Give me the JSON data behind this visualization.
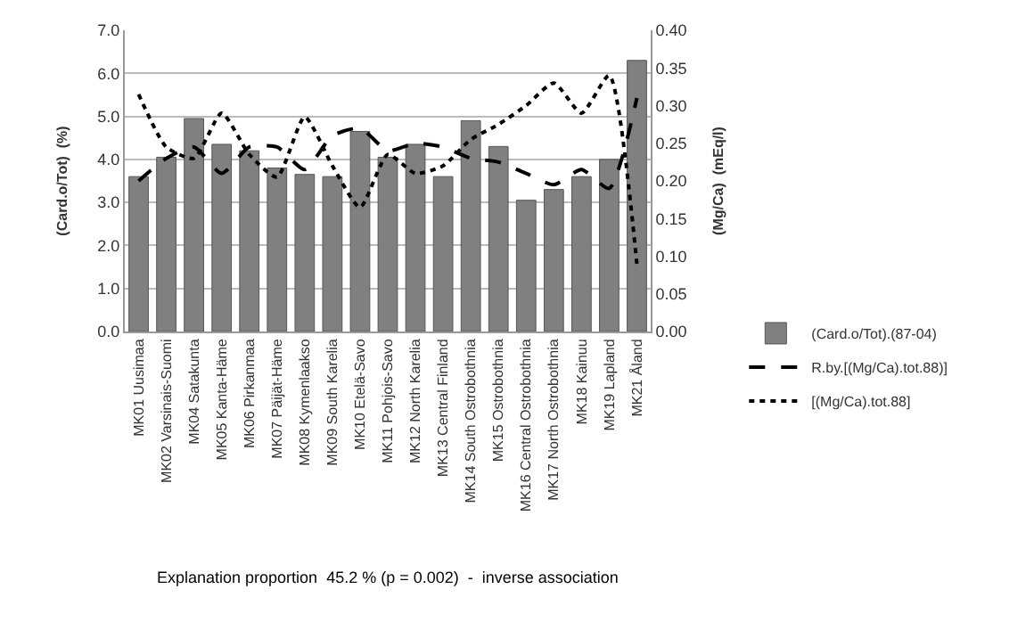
{
  "chart_data": {
    "type": "bar",
    "categories": [
      "MK01 Uusimaa",
      "MK02 Varsinais-Suomi",
      "MK04 Satakunta",
      "MK05 Kanta-Häme",
      "MK06 Pirkanmaa",
      "MK07 Päijät-Häme",
      "MK08 Kymenlaakso",
      "MK09 South Karelia",
      "MK10 Etelä-Savo",
      "MK11 Pohjois-Savo",
      "MK12 North Karelia",
      "MK13 Central Finland",
      "MK14 South Ostrobothnia",
      "MK15 Ostrobothnia",
      "MK16 Central Ostrobothnia",
      "MK17 North Ostrobothnia",
      "MK18 Kainuu",
      "MK19 Lapland",
      "MK21 Åland"
    ],
    "series": [
      {
        "name": "(Card.o/Tot).(87-04)",
        "color": "#808080",
        "values": [
          3.6,
          4.05,
          4.95,
          4.35,
          4.2,
          3.8,
          3.65,
          3.6,
          4.65,
          4.05,
          4.35,
          3.6,
          4.9,
          4.3,
          3.05,
          3.3,
          3.6,
          4.0,
          6.3
        ]
      },
      {
        "name": "R.by.[(Mg/Ca).tot.88)]",
        "type": "line",
        "axis": "y2",
        "color": "#000000",
        "line_style": "dashed",
        "values": [
          0.2,
          0.23,
          0.245,
          0.21,
          0.245,
          0.245,
          0.215,
          0.26,
          0.27,
          0.24,
          0.25,
          0.245,
          0.23,
          0.225,
          0.21,
          0.195,
          0.215,
          0.19,
          0.31
        ]
      },
      {
        "name": "[(Mg/Ca).tot.88]",
        "type": "line",
        "axis": "y2",
        "color": "#000000",
        "line_style": "dotted",
        "values": [
          0.315,
          0.245,
          0.23,
          0.29,
          0.235,
          0.205,
          0.285,
          0.22,
          0.165,
          0.235,
          0.21,
          0.22,
          0.255,
          0.275,
          0.3,
          0.33,
          0.29,
          0.34,
          0.09
        ]
      }
    ],
    "ylabel": "(Card.o/Tot)  (%)",
    "y2label": "(Mg/Ca)  (mEq/l)",
    "ylim": [
      0,
      7
    ],
    "yticks": [
      {
        "value": 0,
        "label": "0.0"
      },
      {
        "value": 1,
        "label": "1.0"
      },
      {
        "value": 2,
        "label": "2.0"
      },
      {
        "value": 3,
        "label": "3.0"
      },
      {
        "value": 4,
        "label": "4.0"
      },
      {
        "value": 5,
        "label": "5.0"
      },
      {
        "value": 6,
        "label": "6.0"
      },
      {
        "value": 7,
        "label": "7.0"
      }
    ],
    "y2lim": [
      0,
      0.4
    ],
    "y2ticks": [
      {
        "value": 0,
        "label": "0.00"
      },
      0.05,
      {
        "value": 0.1,
        "label": "0.10"
      },
      0.15,
      {
        "value": 0.2,
        "label": "0.20"
      },
      0.25,
      {
        "value": 0.3,
        "label": "0.30"
      },
      0.35,
      {
        "value": 0.4,
        "label": "0.40"
      }
    ],
    "grid": "y",
    "legend": "right",
    "marker": "none",
    "annotations": [
      "Explanation proportion  45.2 % (p = 0.002)  -  inverse association"
    ]
  }
}
